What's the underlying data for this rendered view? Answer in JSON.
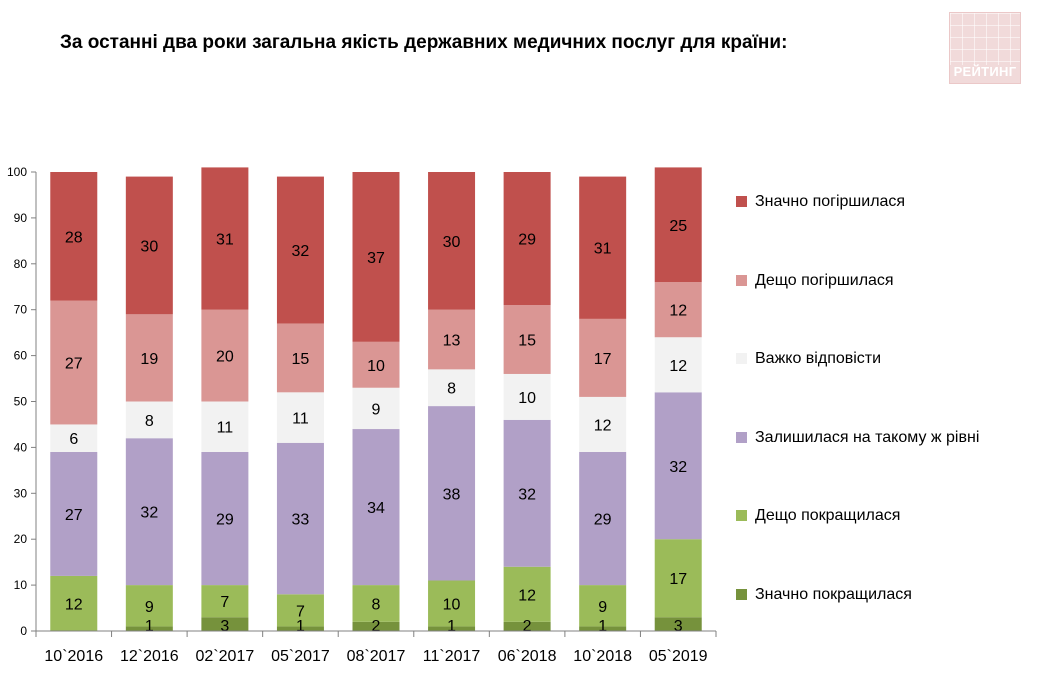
{
  "header": {
    "title": "За останні два роки загальна якість державних медичних послуг для країни:"
  },
  "logo": {
    "text": "РЕЙТИНГ",
    "color": "#f1dada"
  },
  "chart_data": {
    "type": "bar",
    "stacked": true,
    "title": "За останні два роки загальна якість державних медичних послуг для країни:",
    "xlabel": "",
    "ylabel": "",
    "ylim": [
      0,
      100
    ],
    "yticks": [
      0,
      10,
      20,
      30,
      40,
      50,
      60,
      70,
      80,
      90,
      100
    ],
    "grid": false,
    "legend_position": "right",
    "categories": [
      "10`2016",
      "12`2016",
      "02`2017",
      "05`2017",
      "08`2017",
      "11`2017",
      "06`2018",
      "10`2018",
      "05`2019"
    ],
    "series": [
      {
        "name": "Значно покращилася",
        "color": "#76923c",
        "values": [
          0,
          1,
          3,
          1,
          2,
          1,
          2,
          1,
          3
        ]
      },
      {
        "name": "Дещо покращилася",
        "color": "#9bbb59",
        "values": [
          12,
          9,
          7,
          7,
          8,
          10,
          12,
          9,
          17
        ]
      },
      {
        "name": "Залишилася на такому ж рівні",
        "color": "#b1a0c7",
        "values": [
          27,
          32,
          29,
          33,
          34,
          38,
          32,
          29,
          32
        ]
      },
      {
        "name": "Важко відповісти",
        "color": "#f2f2f2",
        "values": [
          6,
          8,
          11,
          11,
          9,
          8,
          10,
          12,
          12
        ]
      },
      {
        "name": "Дещо погіршилася",
        "color": "#da9694",
        "values": [
          27,
          19,
          20,
          15,
          10,
          13,
          15,
          17,
          12
        ]
      },
      {
        "name": "Значно погіршилася",
        "color": "#c0504d",
        "values": [
          28,
          30,
          31,
          32,
          37,
          30,
          29,
          31,
          25
        ]
      }
    ],
    "data_labels": [
      [
        "",
        "12",
        "27",
        "6",
        "27",
        "28"
      ],
      [
        "1",
        "9",
        "32",
        "8",
        "19",
        "30"
      ],
      [
        "3",
        "7",
        "29",
        "11",
        "20",
        "31"
      ],
      [
        "1",
        "7",
        "33",
        "11",
        "15",
        "32"
      ],
      [
        "2",
        "8",
        "34",
        "9",
        "10",
        "37"
      ],
      [
        "1",
        "10",
        "38",
        "8",
        "13",
        "30"
      ],
      [
        "2",
        "12",
        "32",
        "10",
        "15",
        "29"
      ],
      [
        "1",
        "9",
        "29",
        "12",
        "17",
        "31"
      ],
      [
        "3",
        "17",
        "32",
        "12",
        "12",
        "25"
      ]
    ],
    "legend_order": [
      "Значно погіршилася",
      "Дещо погіршилася",
      "Важко відповісти",
      "Залишилася на такому ж рівні",
      "Дещо покращилася",
      "Значно покращилася"
    ]
  }
}
